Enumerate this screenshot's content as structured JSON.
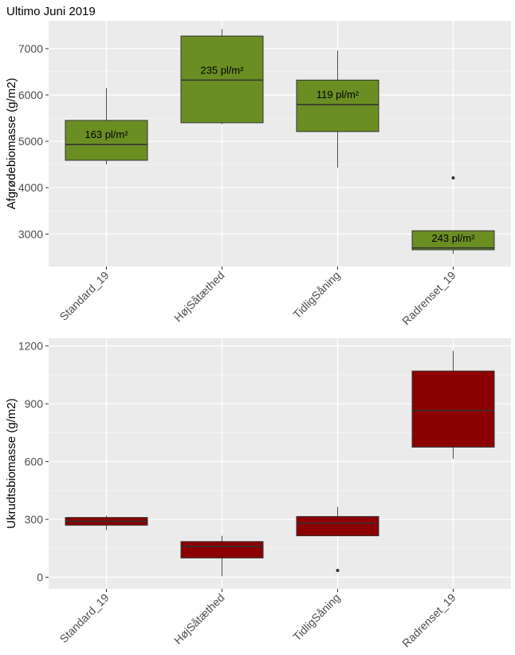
{
  "chart_data": [
    {
      "type": "boxplot",
      "title": "Ultimo Juni 2019",
      "ylabel": "Afgrødebiomasse (g/m2)",
      "xlabel": "",
      "categories": [
        "Standard_19",
        "HøjSåtæthed",
        "TidligSåning",
        "Radrenset_19"
      ],
      "ylim": [
        2300,
        7600
      ],
      "yticks": [
        3000,
        4000,
        5000,
        6000,
        7000
      ],
      "fill_color": "#6b8e23",
      "boxes": [
        {
          "category": "Standard_19",
          "q1": 4590,
          "median": 4930,
          "q3": 5450,
          "whisker_low": 4500,
          "whisker_high": 6150,
          "outliers": [],
          "label": "163 pl/m²"
        },
        {
          "category": "HøjSåtæthed",
          "q1": 5400,
          "median": 6320,
          "q3": 7270,
          "whisker_low": 5370,
          "whisker_high": 7420,
          "outliers": [],
          "label": "235 pl/m²"
        },
        {
          "category": "TidligSåning",
          "q1": 5210,
          "median": 5790,
          "q3": 6320,
          "whisker_low": 4430,
          "whisker_high": 6960,
          "outliers": [],
          "label": "119 pl/m²"
        },
        {
          "category": "Radrenset_19",
          "q1": 2660,
          "median": 2700,
          "q3": 3070,
          "whisker_low": 2570,
          "whisker_high": 3070,
          "outliers": [
            4210
          ],
          "label": "243 pl/m²"
        }
      ]
    },
    {
      "type": "boxplot",
      "title": "",
      "ylabel": "Ukrudtsbiomasse (g/m2)",
      "xlabel": "",
      "categories": [
        "Standard_19",
        "HøjSåtæthed",
        "TidligSåning",
        "Radrenset_19"
      ],
      "ylim": [
        -60,
        1240
      ],
      "yticks": [
        0,
        300,
        600,
        900,
        1200
      ],
      "fill_color": "#8b0000",
      "boxes": [
        {
          "category": "Standard_19",
          "q1": 270,
          "median": 290,
          "q3": 310,
          "whisker_low": 245,
          "whisker_high": 320,
          "outliers": []
        },
        {
          "category": "HøjSåtæthed",
          "q1": 100,
          "median": 160,
          "q3": 185,
          "whisker_low": 5,
          "whisker_high": 215,
          "outliers": []
        },
        {
          "category": "TidligSåning",
          "q1": 215,
          "median": 280,
          "q3": 315,
          "whisker_low": 215,
          "whisker_high": 365,
          "outliers": [
            35
          ]
        },
        {
          "category": "Radrenset_19",
          "q1": 675,
          "median": 865,
          "q3": 1070,
          "whisker_low": 615,
          "whisker_high": 1175,
          "outliers": []
        }
      ]
    }
  ]
}
